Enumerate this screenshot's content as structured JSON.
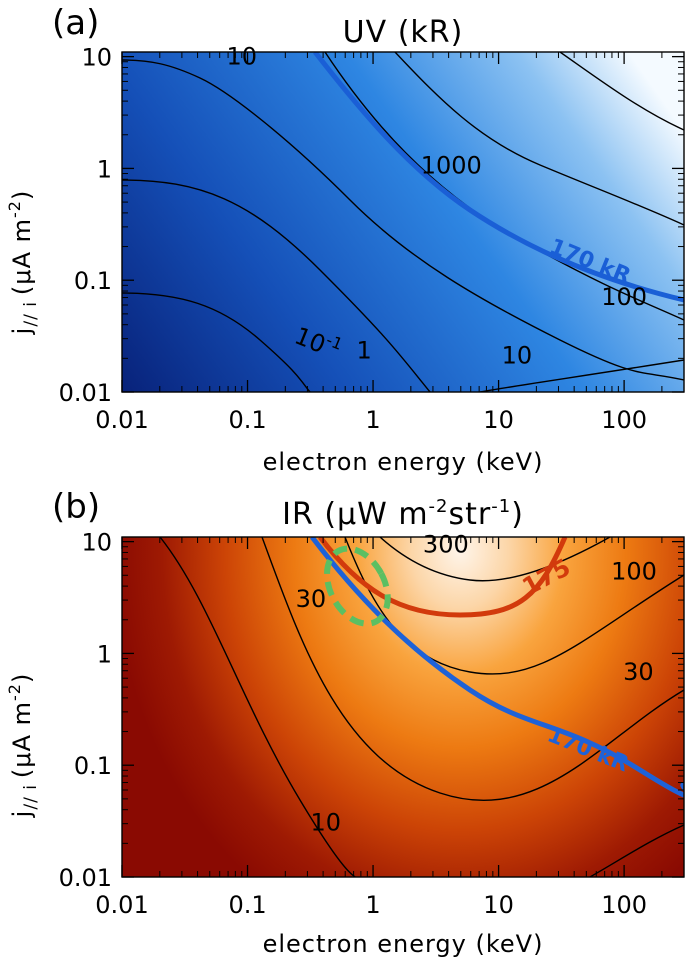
{
  "chart_data": [
    {
      "panel": "(a)",
      "type": "heatmap",
      "title": "UV (kR)",
      "xlabel": "electron energy (keV)",
      "ylabel_main": "j",
      "ylabel_sub": "// i",
      "ylabel_units": "(μA m",
      "ylabel_exp": "-2",
      "ylabel_close": ")",
      "xscale": "log",
      "yscale": "log",
      "xlim": [
        0.01,
        300
      ],
      "ylim": [
        0.01,
        11
      ],
      "xticks": [
        "0.01",
        "0.1",
        "1",
        "10",
        "100"
      ],
      "yticks": [
        "0.01",
        "0.1",
        "1",
        "10"
      ],
      "colormap": [
        "#0a2e86",
        "#1e6fd0",
        "#f4faff"
      ],
      "contour_labels": [
        {
          "text": "10",
          "x": 0.09,
          "y": 8.5
        },
        {
          "text": "1000",
          "x": 4.2,
          "y": 0.9
        },
        {
          "text": "100",
          "x": 100,
          "y": 0.06
        },
        {
          "text": "1",
          "x": 0.85,
          "y": 0.02
        },
        {
          "text": "10",
          "x": 14,
          "y": 0.018
        }
      ],
      "contour_exp_label": {
        "base": "10",
        "exp": "-1",
        "x": 0.23,
        "y": 0.028
      },
      "highlight": {
        "label": "170 kR",
        "color": "#1a5fd6"
      }
    },
    {
      "panel": "(b)",
      "type": "heatmap",
      "title_main": "IR (μW m",
      "title_exp1": "-2",
      "title_mid": "str",
      "title_exp2": "-1",
      "title_close": ")",
      "xlabel": "electron energy (keV)",
      "ylabel_main": "j",
      "ylabel_sub": "// i",
      "ylabel_units": "(μA m",
      "ylabel_exp": "-2",
      "ylabel_close": ")",
      "xscale": "log",
      "yscale": "log",
      "xlim": [
        0.01,
        300
      ],
      "ylim": [
        0.01,
        11
      ],
      "xticks": [
        "0.01",
        "0.1",
        "1",
        "10",
        "100"
      ],
      "yticks": [
        "0.01",
        "0.1",
        "1",
        "10"
      ],
      "colormap": [
        "#8a0a02",
        "#f07e0c",
        "#fff4e8"
      ],
      "contour_labels": [
        {
          "text": "300",
          "x": 3.8,
          "y": 8.0
        },
        {
          "text": "100",
          "x": 120,
          "y": 4.6
        },
        {
          "text": "30",
          "x": 0.32,
          "y": 2.6
        },
        {
          "text": "30",
          "x": 130,
          "y": 0.58
        },
        {
          "text": "10",
          "x": 0.42,
          "y": 0.026
        }
      ],
      "red_curve": {
        "label": "175",
        "color": "#d23a0c"
      },
      "blue_curve": {
        "label": "170 kR",
        "color": "#1e62d8"
      },
      "marker": {
        "color": "#5cbf62",
        "center": [
          0.75,
          4.0
        ]
      }
    }
  ]
}
